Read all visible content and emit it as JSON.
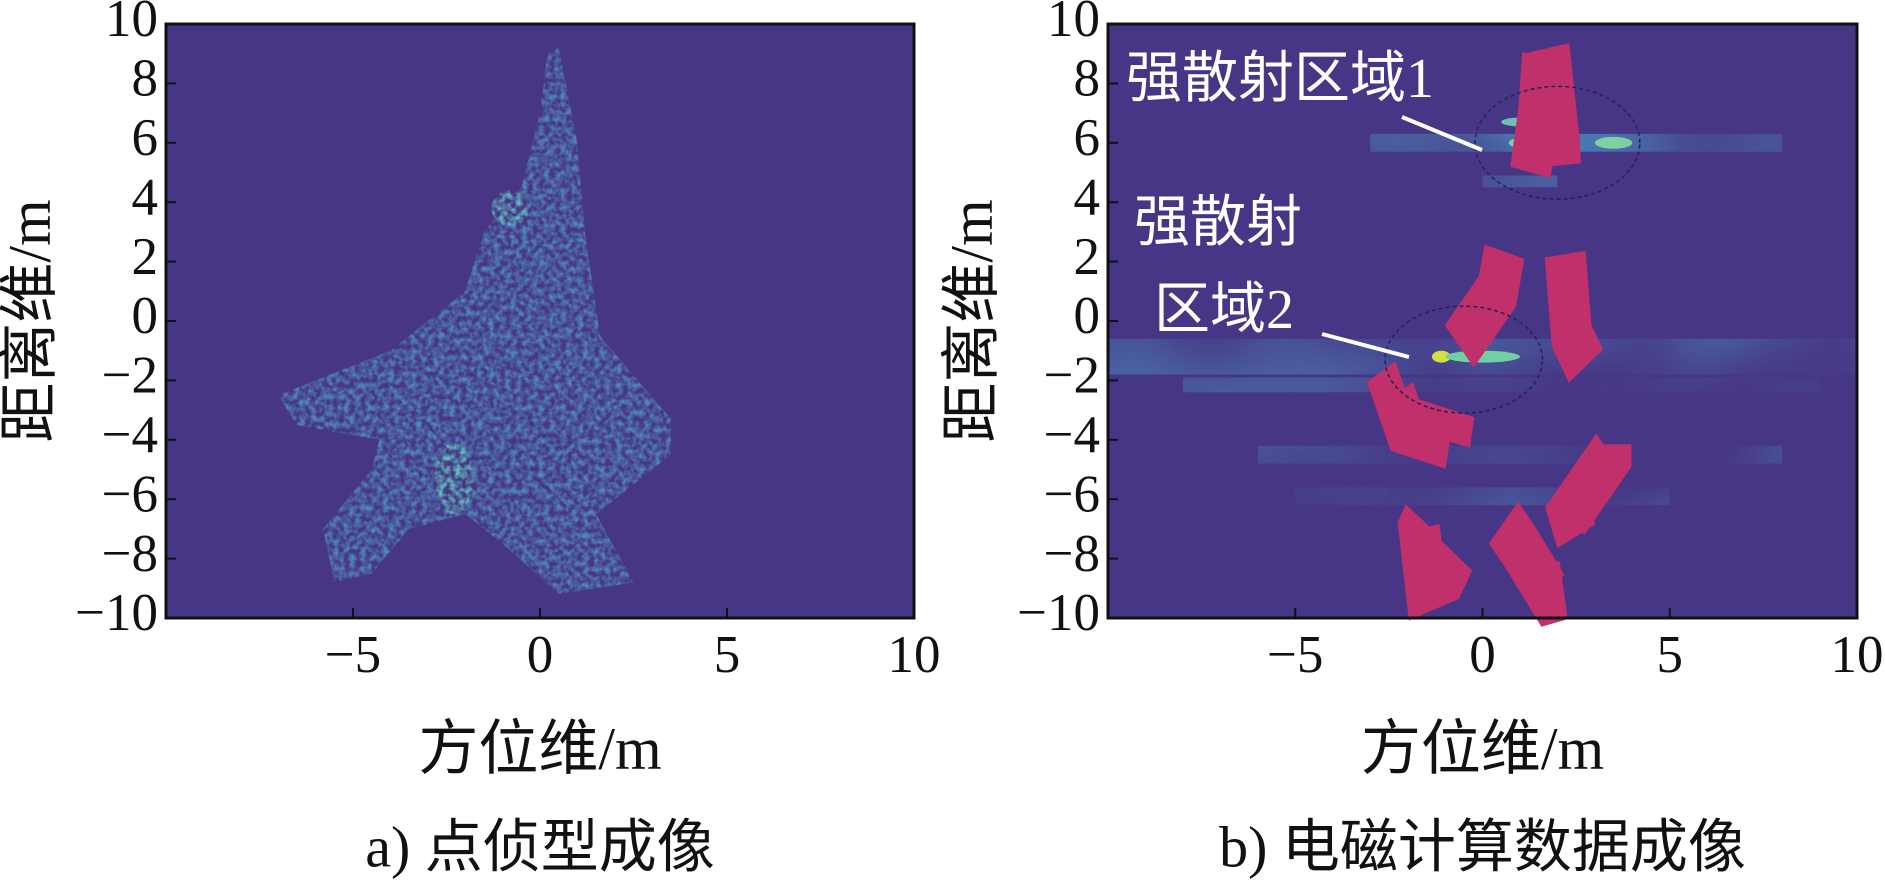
{
  "chart_data": [
    {
      "type": "image",
      "title": "a) 点侦型成像",
      "xlabel": "方位维/m",
      "ylabel": "距离维/m",
      "xlim": [
        -10,
        10
      ],
      "ylim": [
        -10,
        10
      ],
      "xticks": [
        {
          "value": -5,
          "label": "−5"
        },
        0,
        5,
        10
      ],
      "yticks": [
        {
          "value": -10,
          "label": "−10"
        },
        {
          "value": -8,
          "label": "−8"
        },
        {
          "value": -6,
          "label": "−6"
        },
        {
          "value": -4,
          "label": "−4"
        },
        {
          "value": -2,
          "label": "−2"
        },
        0,
        2,
        4,
        6,
        8,
        10
      ]
    },
    {
      "type": "image",
      "title": "b) 电磁计算数据成像",
      "xlabel": "方位维/m",
      "ylabel": "距离维/m",
      "xlim": [
        -10,
        10
      ],
      "ylim": [
        -10,
        10
      ],
      "xticks": [
        {
          "value": -5,
          "label": "−5"
        },
        0,
        5,
        10
      ],
      "yticks": [
        {
          "value": -10,
          "label": "−10"
        },
        {
          "value": -8,
          "label": "−8"
        },
        {
          "value": -6,
          "label": "−6"
        },
        {
          "value": -4,
          "label": "−4"
        },
        {
          "value": -2,
          "label": "−2"
        },
        0,
        2,
        4,
        6,
        8,
        10
      ],
      "annotations": [
        "强散射区域1",
        "强散射",
        "区域2"
      ]
    }
  ]
}
